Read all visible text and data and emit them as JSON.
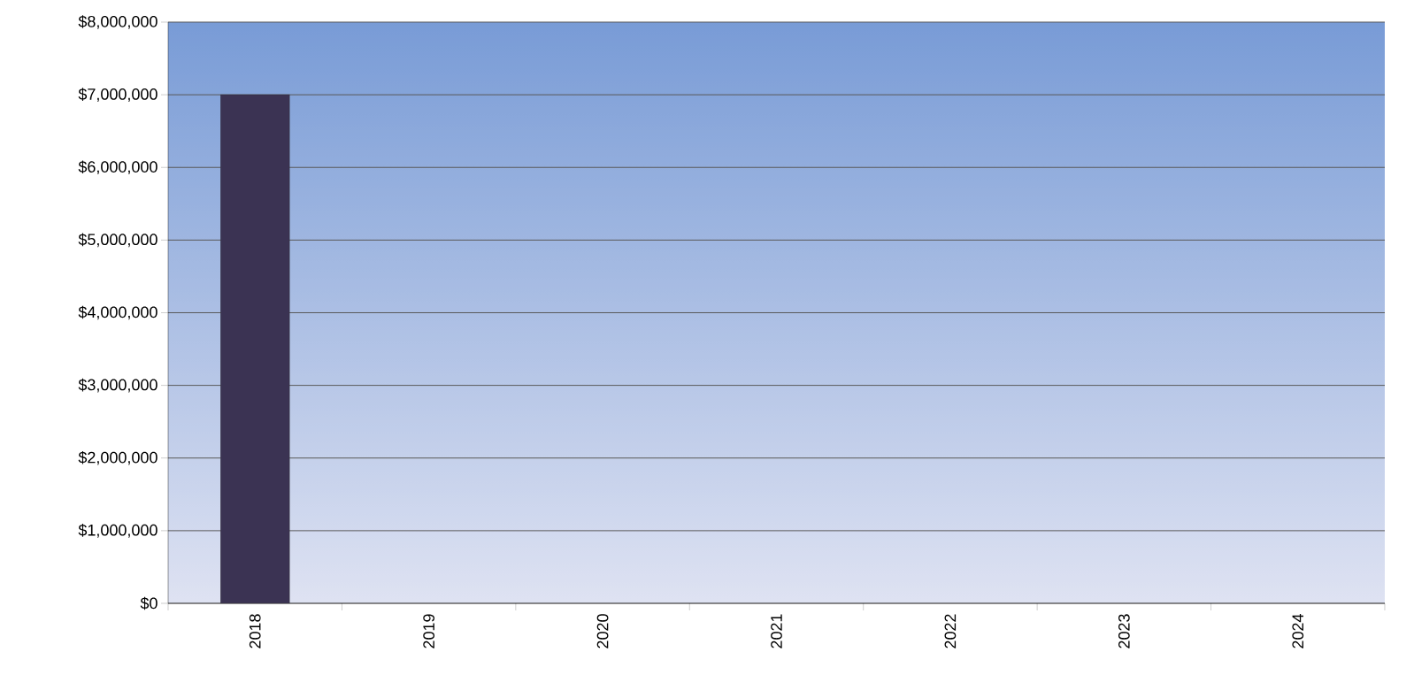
{
  "chart_data": {
    "type": "bar",
    "categories": [
      "2018",
      "2019",
      "2020",
      "2021",
      "2022",
      "2023",
      "2024"
    ],
    "values": [
      7000000,
      null,
      null,
      null,
      null,
      null,
      null
    ],
    "color": "#3b3353",
    "ylim": [
      0,
      8000000
    ],
    "yticks": [
      {
        "value": 0,
        "label": "$0"
      },
      {
        "value": 1000000,
        "label": "$1,000,000"
      },
      {
        "value": 2000000,
        "label": "$2,000,000"
      },
      {
        "value": 3000000,
        "label": "$3,000,000"
      },
      {
        "value": 4000000,
        "label": "$4,000,000"
      },
      {
        "value": 5000000,
        "label": "$5,000,000"
      },
      {
        "value": 6000000,
        "label": "$6,000,000"
      },
      {
        "value": 7000000,
        "label": "$7,000,000"
      },
      {
        "value": 8000000,
        "label": "$8,000,000"
      }
    ],
    "grid": "y"
  }
}
